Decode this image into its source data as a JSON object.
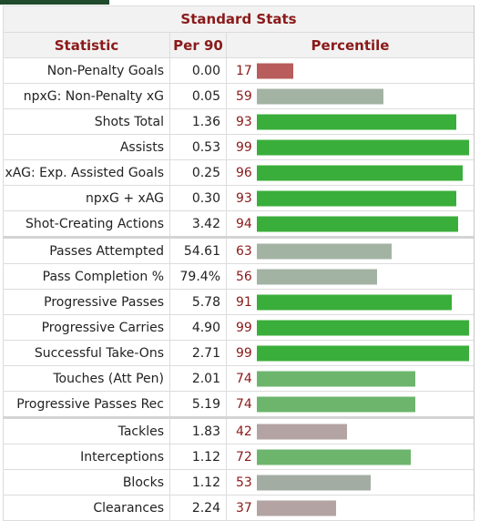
{
  "table": {
    "caption": "Standard Stats",
    "headers": {
      "statistic": "Statistic",
      "per90": "Per 90",
      "percentile": "Percentile"
    },
    "rows": [
      {
        "statistic": "Non-Penalty Goals",
        "per90": "0.00",
        "percentile": "17",
        "pct_value": 17,
        "color": "#b85c5c",
        "group_start": false
      },
      {
        "statistic": "npxG: Non-Penalty xG",
        "per90": "0.05",
        "percentile": "59",
        "pct_value": 59,
        "color": "#a3b3a3",
        "group_start": false
      },
      {
        "statistic": "Shots Total",
        "per90": "1.36",
        "percentile": "93",
        "pct_value": 93,
        "color": "#3aae3a",
        "group_start": false
      },
      {
        "statistic": "Assists",
        "per90": "0.53",
        "percentile": "99",
        "pct_value": 99,
        "color": "#3aae3a",
        "group_start": false
      },
      {
        "statistic": "xAG: Exp. Assisted Goals",
        "per90": "0.25",
        "percentile": "96",
        "pct_value": 96,
        "color": "#3aae3a",
        "group_start": false
      },
      {
        "statistic": "npxG + xAG",
        "per90": "0.30",
        "percentile": "93",
        "pct_value": 93,
        "color": "#3aae3a",
        "group_start": false
      },
      {
        "statistic": "Shot-Creating Actions",
        "per90": "3.42",
        "percentile": "94",
        "pct_value": 94,
        "color": "#3aae3a",
        "group_start": false
      },
      {
        "statistic": "Passes Attempted",
        "per90": "54.61",
        "percentile": "63",
        "pct_value": 63,
        "color": "#a3b3a3",
        "group_start": true
      },
      {
        "statistic": "Pass Completion %",
        "per90": "79.4%",
        "percentile": "56",
        "pct_value": 56,
        "color": "#a3b3a3",
        "group_start": false
      },
      {
        "statistic": "Progressive Passes",
        "per90": "5.78",
        "percentile": "91",
        "pct_value": 91,
        "color": "#3aae3a",
        "group_start": false
      },
      {
        "statistic": "Progressive Carries",
        "per90": "4.90",
        "percentile": "99",
        "pct_value": 99,
        "color": "#3aae3a",
        "group_start": false
      },
      {
        "statistic": "Successful Take-Ons",
        "per90": "2.71",
        "percentile": "99",
        "pct_value": 99,
        "color": "#3aae3a",
        "group_start": false
      },
      {
        "statistic": "Touches (Att Pen)",
        "per90": "2.01",
        "percentile": "74",
        "pct_value": 74,
        "color": "#6db56d",
        "group_start": false
      },
      {
        "statistic": "Progressive Passes Rec",
        "per90": "5.19",
        "percentile": "74",
        "pct_value": 74,
        "color": "#6db56d",
        "group_start": false
      },
      {
        "statistic": "Tackles",
        "per90": "1.83",
        "percentile": "42",
        "pct_value": 42,
        "color": "#b3a3a3",
        "group_start": true
      },
      {
        "statistic": "Interceptions",
        "per90": "1.12",
        "percentile": "72",
        "pct_value": 72,
        "color": "#6db56d",
        "group_start": false
      },
      {
        "statistic": "Blocks",
        "per90": "1.12",
        "percentile": "53",
        "pct_value": 53,
        "color": "#a3aca3",
        "group_start": false
      },
      {
        "statistic": "Clearances",
        "per90": "2.24",
        "percentile": "37",
        "pct_value": 37,
        "color": "#b3a3a3",
        "group_start": false
      }
    ]
  }
}
